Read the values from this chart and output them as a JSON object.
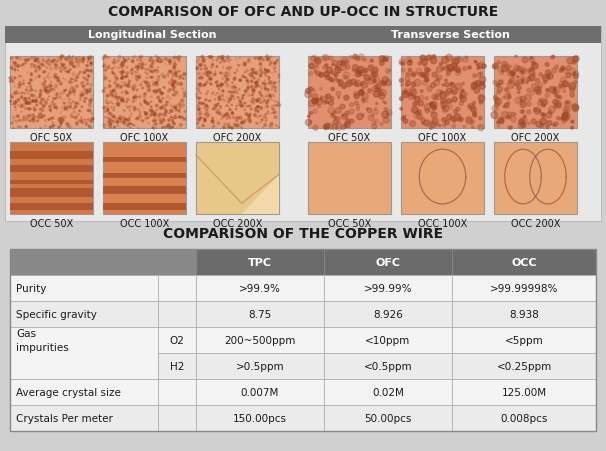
{
  "title1": "COMPARISON OF OFC AND UP-OCC IN STRUCTURE",
  "title2": "COMPARISON OF THE COPPER WIRE",
  "section1_label": "Longitudinal Section",
  "section2_label": "Transverse Section",
  "ofc_labels": [
    "OFC 50X",
    "OFC 100X",
    "OFC 200X"
  ],
  "occ_labels": [
    "OCC 50X",
    "OCC 100X",
    "OCC 200X"
  ],
  "bg_color": "#d0d0d0",
  "panel_bg": "#ffffff",
  "header_color": "#6e6e6e",
  "table_header_color": "#6b6b6b",
  "table_rows": [
    [
      "Purity",
      "",
      ">99.9%",
      ">99.99%",
      ">99.99998%"
    ],
    [
      "Specific gravity",
      "",
      "8.75",
      "8.926",
      "8.938"
    ],
    [
      "Gas\nimpurities",
      "O2",
      "200~500ppm",
      "<10ppm",
      "<5ppm"
    ],
    [
      "",
      "H2",
      ">0.5ppm",
      "<0.5ppm",
      "<0.25ppm"
    ],
    [
      "Average crystal size",
      "",
      "0.007M",
      "0.02M",
      "125.00M"
    ],
    [
      "Crystals Per meter",
      "",
      "150.00pcs",
      "50.00pcs",
      "0.008pcs"
    ]
  ],
  "ofc_lng_colors": [
    "#e8a882",
    "#e8a882",
    "#e8a882"
  ],
  "occ_lng_colors": [
    "#d07848",
    "#d07848",
    "#e8c090"
  ],
  "ofc_trans_colors": [
    "#e89070",
    "#e89070",
    "#e89070"
  ],
  "occ_trans_colors": [
    "#e8a070",
    "#e8a070",
    "#e8a070"
  ]
}
